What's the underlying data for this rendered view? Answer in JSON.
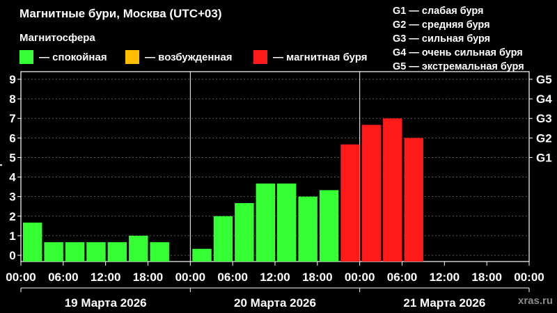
{
  "header": {
    "title": "Магнитные бури, Москва (UTC+03)",
    "subtitle": "Магнитосфера"
  },
  "legend": [
    {
      "label": "— спокойная",
      "color": "#33ff33"
    },
    {
      "label": "— возбужденная",
      "color": "#ffbf00"
    },
    {
      "label": "— магнитная буря",
      "color": "#ff1a1a"
    }
  ],
  "storm_scale": [
    "G1 — слабая буря",
    "G2 — средняя буря",
    "G3 — сильная буря",
    "G4 — очень сильная буря",
    "G5 — экстремальная буря"
  ],
  "watermark": "xras.ru",
  "chart_data": {
    "type": "bar",
    "ylabel": "Kp",
    "ylim": [
      0,
      9
    ],
    "yticks": [
      "0",
      "1",
      "2",
      "3",
      "4",
      "5",
      "6",
      "7",
      "8",
      "9"
    ],
    "right_axis_ticks": [
      {
        "y": 5,
        "label": "G1"
      },
      {
        "y": 6,
        "label": "G2"
      },
      {
        "y": 7,
        "label": "G3"
      },
      {
        "y": 8,
        "label": "G4"
      },
      {
        "y": 9,
        "label": "G5"
      }
    ],
    "grid": "horizontal-dashed",
    "days": [
      "19 Марта 2026",
      "20 Марта 2026",
      "21 Марта 2026"
    ],
    "xtick_labels": [
      "00:00",
      "06:00",
      "12:00",
      "18:00",
      "00:00",
      "06:00",
      "12:00",
      "18:00",
      "00:00",
      "06:00",
      "12:00",
      "18:00",
      "00:00"
    ],
    "bar_interval_hours": 3,
    "values": [
      1.67,
      0.67,
      0.67,
      0.67,
      0.67,
      1.0,
      0.67,
      null,
      0.33,
      2.0,
      2.67,
      3.67,
      3.67,
      3.0,
      3.33,
      5.67,
      6.67,
      7.0,
      6.0,
      null,
      null,
      null,
      null,
      null
    ],
    "bar_colors": {
      "quiet": "#33ff33",
      "active": "#ffbf00",
      "storm": "#ff1a1a"
    },
    "storm_threshold": 5
  }
}
